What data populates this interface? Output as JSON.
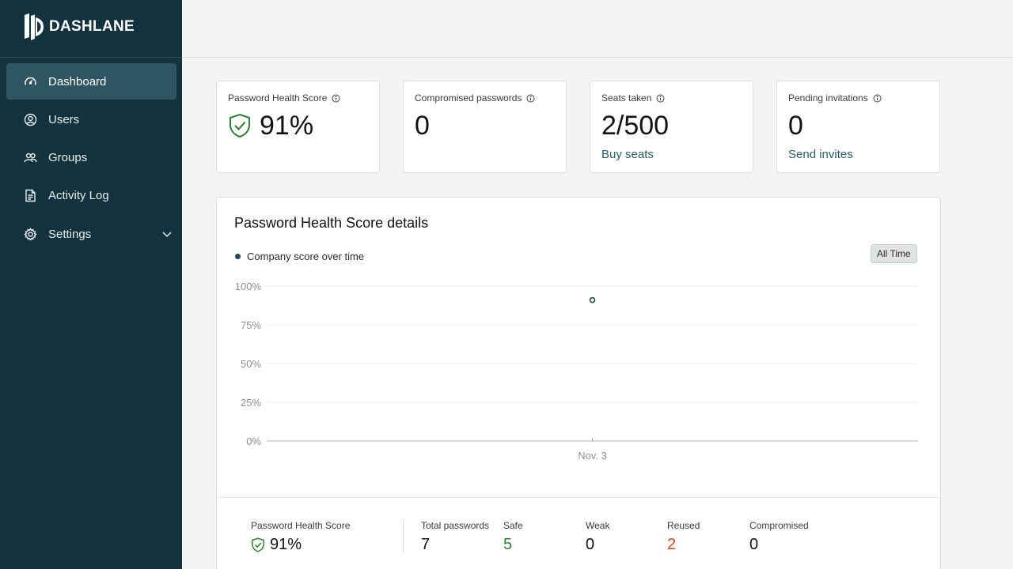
{
  "app": {
    "logo_text": "DASHLANE"
  },
  "sidebar": {
    "items": [
      {
        "label": "Dashboard",
        "icon": "gauge-icon",
        "active": true
      },
      {
        "label": "Users",
        "icon": "user-circle-icon"
      },
      {
        "label": "Groups",
        "icon": "group-icon"
      },
      {
        "label": "Activity Log",
        "icon": "document-icon"
      },
      {
        "label": "Settings",
        "icon": "gear-icon",
        "expandable": true
      }
    ]
  },
  "cards": [
    {
      "title": "Password Health Score",
      "value": "91%",
      "icon": "shield-check-icon"
    },
    {
      "title": "Compromised passwords",
      "value": "0"
    },
    {
      "title": "Seats taken",
      "value": "2/500",
      "link": "Buy seats"
    },
    {
      "title": "Pending invitations",
      "value": "0",
      "link": "Send invites"
    }
  ],
  "details": {
    "title": "Password Health Score details",
    "legend": "Company score over time",
    "range_button": "All Time"
  },
  "chart_data": {
    "type": "scatter",
    "x": [
      "Nov. 3"
    ],
    "series": [
      {
        "name": "Company score over time",
        "values": [
          91
        ]
      }
    ],
    "y_ticks": [
      "100%",
      "75%",
      "50%",
      "25%",
      "0%"
    ],
    "ylim": [
      0,
      100
    ],
    "grid": true,
    "color": "#1e4c58"
  },
  "summary": {
    "score_label": "Password Health Score",
    "score_value": "91%",
    "stats": [
      {
        "label": "Total passwords",
        "value": "7",
        "color": "#111111"
      },
      {
        "label": "Safe",
        "value": "5",
        "color": "#2e7d32"
      },
      {
        "label": "Weak",
        "value": "0",
        "color": "#111111"
      },
      {
        "label": "Reused",
        "value": "2",
        "color": "#d2492a"
      },
      {
        "label": "Compromised",
        "value": "0",
        "color": "#111111"
      }
    ]
  }
}
